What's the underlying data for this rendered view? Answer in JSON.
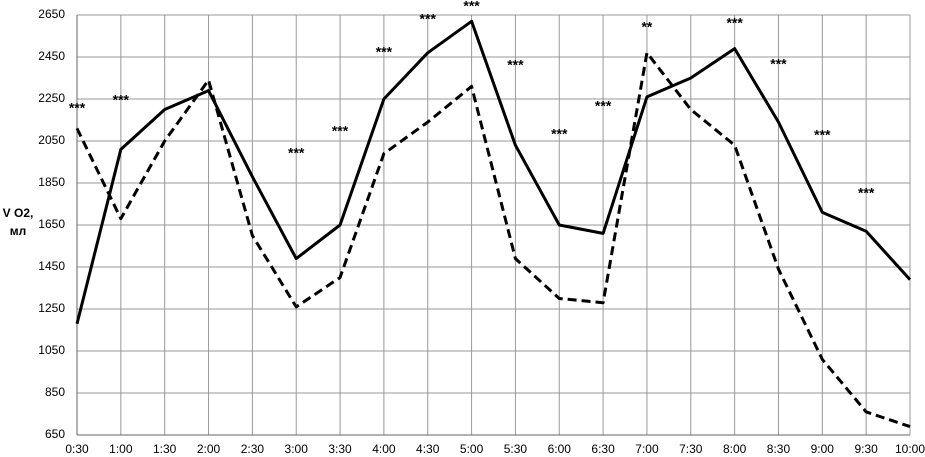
{
  "chart_data": {
    "type": "line",
    "y_label": [
      "V O2,",
      "мл"
    ],
    "categories": [
      "0:30",
      "1:00",
      "1:30",
      "2:00",
      "2:30",
      "3:00",
      "3:30",
      "4:00",
      "4:30",
      "5:00",
      "5:30",
      "6:00",
      "6:30",
      "7:00",
      "7:30",
      "8:00",
      "8:30",
      "9:00",
      "9:30",
      "10:00"
    ],
    "series": [
      {
        "color": "#000000",
        "style": "solid",
        "values": [
          1180,
          2010,
          2200,
          2290,
          1880,
          1490,
          1650,
          2250,
          2470,
          2620,
          2030,
          1650,
          1610,
          2260,
          2350,
          2490,
          2140,
          1710,
          1620,
          1390
        ]
      },
      {
        "color": "#000000",
        "style": "dashed",
        "values": [
          2110,
          1680,
          2050,
          2340,
          1600,
          1260,
          1400,
          1990,
          2140,
          2310,
          1490,
          1300,
          1280,
          2470,
          2200,
          2030,
          1440,
          1010,
          760,
          690
        ]
      }
    ],
    "annotations": [
      "***",
      "***",
      null,
      null,
      null,
      "***",
      "***",
      "***",
      "***",
      "***",
      "***",
      "***",
      "***",
      "**",
      null,
      "***",
      "***",
      "***",
      "***",
      null
    ],
    "ylim": [
      650,
      2650
    ],
    "yticks": [
      650,
      850,
      1050,
      1250,
      1450,
      1650,
      1850,
      2050,
      2250,
      2450,
      2650
    ],
    "grid": true
  }
}
